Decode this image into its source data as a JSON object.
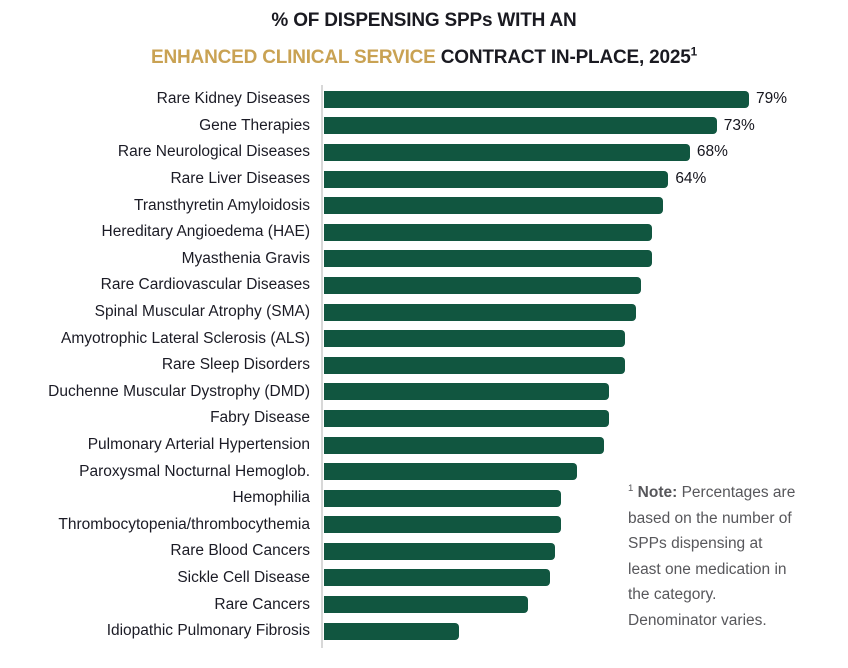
{
  "title": {
    "line1": "% OF DISPENSING SPPs WITH AN",
    "line2_highlight": "ENHANCED CLINICAL SERVICE",
    "line2_rest": "CONTRACT IN-PLACE, 2025",
    "line2_superscript": "1"
  },
  "note": {
    "superscript": "1",
    "bold_label": "Note:",
    "text": "Percentages are based on the number of SPPs dispensing at least one medication in the category. Denominator varies."
  },
  "colors": {
    "bar_green": "#115640",
    "title_gold": "#c9a253",
    "title_dark": "#1a1a21",
    "label_dark": "#1b1b25",
    "note_gray": "#57575b",
    "axis_line": "#d8d8d8"
  },
  "chart_data": {
    "type": "bar",
    "orientation": "horizontal",
    "title": "% OF DISPENSING SPPs WITH AN ENHANCED CLINICAL SERVICE CONTRACT IN-PLACE, 2025",
    "xlabel": "",
    "ylabel": "",
    "xlim": [
      0,
      100
    ],
    "unit": "%",
    "grid": false,
    "legend": false,
    "categories": [
      "Rare Kidney Diseases",
      "Gene Therapies",
      "Rare Neurological Diseases",
      "Rare Liver Diseases",
      "Transthyretin Amyloidosis",
      "Hereditary Angioedema (HAE)",
      "Myasthenia Gravis",
      "Rare Cardiovascular Diseases",
      "Spinal Muscular Atrophy (SMA)",
      "Amyotrophic Lateral Sclerosis (ALS)",
      "Rare Sleep Disorders",
      "Duchenne Muscular Dystrophy (DMD)",
      "Fabry Disease",
      "Pulmonary Arterial Hypertension",
      "Paroxysmal Nocturnal Hemoglob.",
      "Hemophilia",
      "Thrombocytopenia/thrombocythemia",
      "Rare Blood Cancers",
      "Sickle Cell Disease",
      "Rare Cancers",
      "Idiopathic Pulmonary Fibrosis"
    ],
    "values": [
      79,
      73,
      68,
      64,
      63,
      61,
      61,
      59,
      58,
      56,
      56,
      53,
      53,
      52,
      47,
      44,
      44,
      43,
      42,
      38,
      25
    ],
    "data_labels": [
      "79%",
      "73%",
      "68%",
      "64%",
      "",
      "",
      "",
      "",
      "",
      "",
      "",
      "",
      "",
      "",
      "",
      "",
      "",
      "",
      "",
      "",
      ""
    ]
  }
}
